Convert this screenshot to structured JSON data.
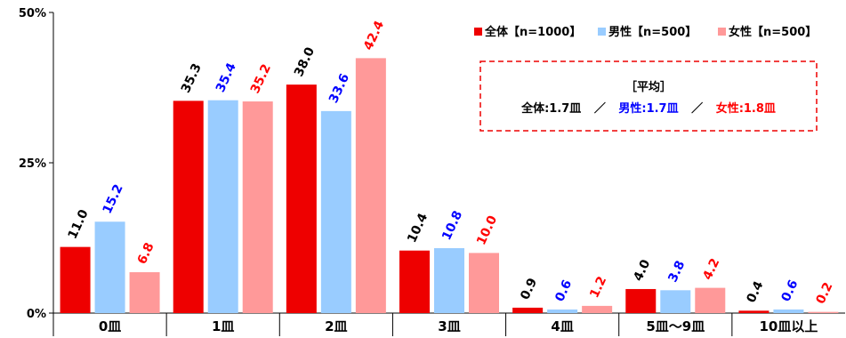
{
  "chart_data": {
    "type": "bar",
    "categories": [
      "0皿",
      "1皿",
      "2皿",
      "3皿",
      "4皿",
      "5皿～9皿",
      "10皿以上"
    ],
    "series": [
      {
        "name": "全体【n=1000】",
        "color": "#ee0000",
        "label_color": "#000000",
        "values": [
          11.0,
          35.3,
          38.0,
          10.4,
          0.9,
          4.0,
          0.4
        ]
      },
      {
        "name": "男性【n=500】",
        "color": "#99ccff",
        "label_color": "#0000ff",
        "values": [
          15.2,
          35.4,
          33.6,
          10.8,
          0.6,
          3.8,
          0.6
        ]
      },
      {
        "name": "女性【n=500】",
        "color": "#ff9999",
        "label_color": "#ff0000",
        "values": [
          6.8,
          35.2,
          42.4,
          10.0,
          1.2,
          4.2,
          0.2
        ]
      }
    ],
    "ylim": [
      0,
      50
    ],
    "yticks": [
      0,
      25,
      50
    ],
    "ytick_labels": [
      "0%",
      "25%",
      "50%"
    ],
    "legend_position": "top-right",
    "grid": false
  },
  "average_box": {
    "title": "［平均］",
    "overall": "全体:1.7皿",
    "separator": "／",
    "male": "男性:1.7皿",
    "female": "女性:1.8皿",
    "overall_color": "#000000",
    "male_color": "#0000ff",
    "female_color": "#ff0000",
    "border_color": "#ee0000"
  }
}
